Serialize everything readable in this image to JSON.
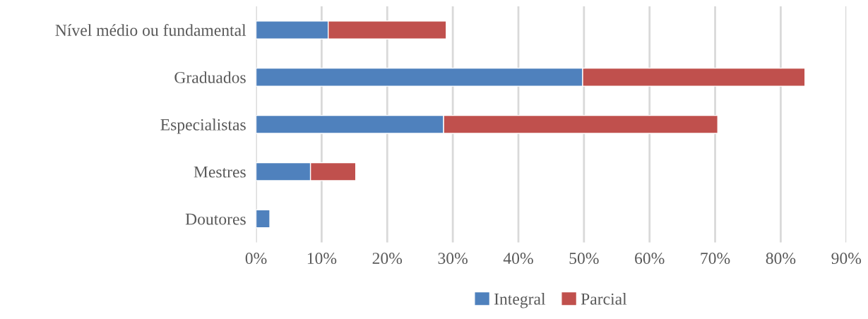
{
  "chart_data": {
    "type": "bar",
    "orientation": "horizontal",
    "stacked": true,
    "categories": [
      "Nível médio ou fundamental",
      "Graduados",
      "Especialistas",
      "Mestres",
      "Doutores"
    ],
    "series": [
      {
        "name": "Integral",
        "color": "#4f81bd",
        "values": [
          11,
          49.8,
          28.6,
          8.3,
          2.1
        ]
      },
      {
        "name": "Parcial",
        "color": "#c0504d",
        "values": [
          18,
          33.9,
          41.8,
          6.9,
          null
        ]
      }
    ],
    "xlim": [
      0,
      90
    ],
    "xticks": [
      {
        "value": 0,
        "label": "0%"
      },
      {
        "value": 10,
        "label": "10%"
      },
      {
        "value": 20,
        "label": "20%"
      },
      {
        "value": 30,
        "label": "30%"
      },
      {
        "value": 40,
        "label": "40%"
      },
      {
        "value": 50,
        "label": "50%"
      },
      {
        "value": 60,
        "label": "60%"
      },
      {
        "value": 70,
        "label": "70%"
      },
      {
        "value": 80,
        "label": "80%"
      },
      {
        "value": 90,
        "label": "90%"
      }
    ],
    "grid": "x",
    "legend": "bottom"
  }
}
